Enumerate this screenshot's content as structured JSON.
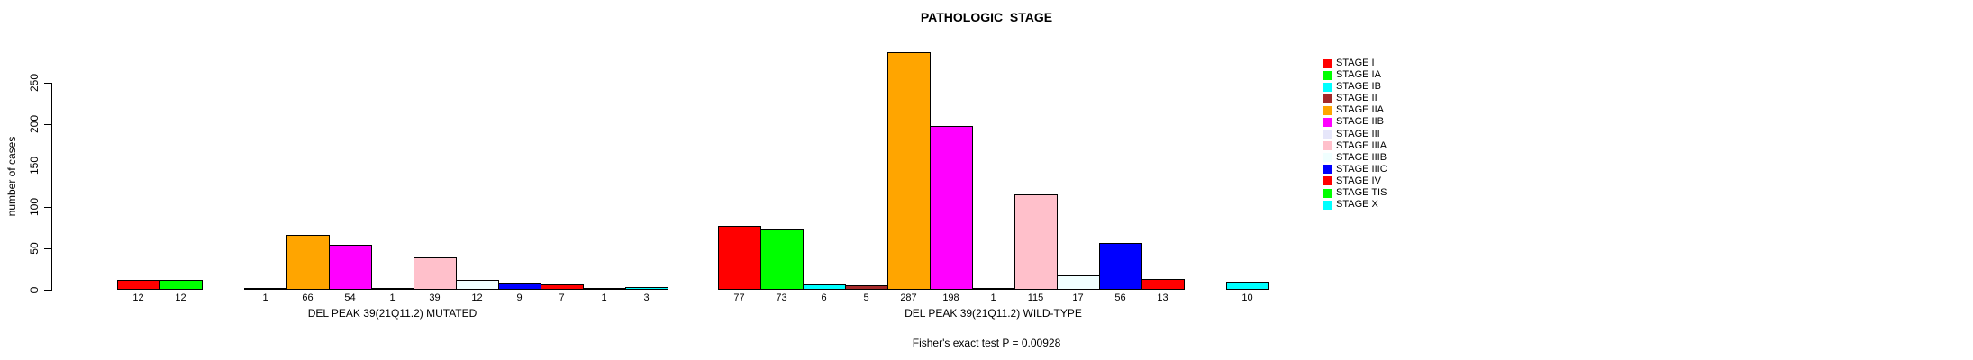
{
  "chart_data": {
    "type": "bar",
    "title": "PATHOLOGIC_STAGE",
    "ylabel": "number of cases",
    "xlabel": "",
    "ylim": [
      0,
      250
    ],
    "yticks": [
      0,
      50,
      100,
      150,
      200,
      250
    ],
    "grid": false,
    "legend_position": "right",
    "categories": [
      "STAGE I",
      "STAGE IA",
      "STAGE IB",
      "STAGE II",
      "STAGE IIA",
      "STAGE IIB",
      "STAGE III",
      "STAGE IIIA",
      "STAGE IIIB",
      "STAGE IIIC",
      "STAGE IV",
      "STAGE TIS",
      "STAGE X"
    ],
    "colors": [
      "#FF0000",
      "#00FF00",
      "#00FFFF",
      "#A52A2A",
      "#FFA500",
      "#FF00FF",
      "#E6E6FA",
      "#FFC0CB",
      "#F0FFFF",
      "#0000FF",
      "#FF0000",
      "#00FF00",
      "#00FFFF"
    ],
    "groups": [
      {
        "label": "DEL PEAK 39(21Q11.2) MUTATED",
        "values": [
          12,
          12,
          0,
          1,
          66,
          54,
          1,
          39,
          12,
          9,
          7,
          1,
          3
        ]
      },
      {
        "label": "DEL PEAK 39(21Q11.2) WILD-TYPE",
        "values": [
          77,
          73,
          6,
          5,
          287,
          198,
          1,
          115,
          17,
          56,
          13,
          0,
          10
        ]
      }
    ],
    "annotation": "Fisher's exact test P = 0.00928"
  }
}
